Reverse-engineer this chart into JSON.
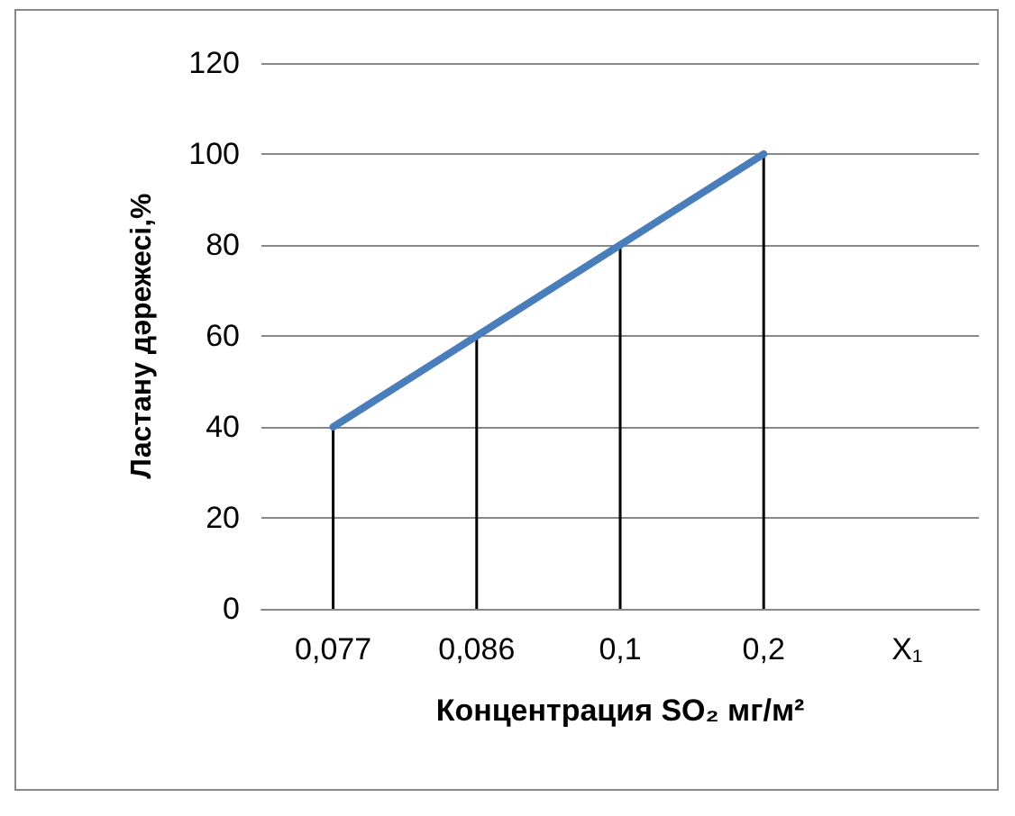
{
  "chart_data": {
    "type": "line",
    "xlabel": "Концентрация SO₂ мг/м²",
    "ylabel": "Ластану дәрежесі,%",
    "categories": [
      "0,077",
      "0,086",
      "0,1",
      "0,2",
      "X₁"
    ],
    "series": [
      {
        "color": "#4a7ebb",
        "values": [
          40,
          60,
          80,
          100,
          null
        ]
      },
      {
        "type": "bar",
        "color": "#000000",
        "values": [
          40,
          60,
          80,
          100,
          null
        ]
      }
    ],
    "ylim": [
      0,
      120
    ],
    "yticks": [
      0,
      20,
      40,
      60,
      80,
      100,
      120
    ],
    "grid": "y",
    "marker": "none",
    "line_style": "solid"
  }
}
